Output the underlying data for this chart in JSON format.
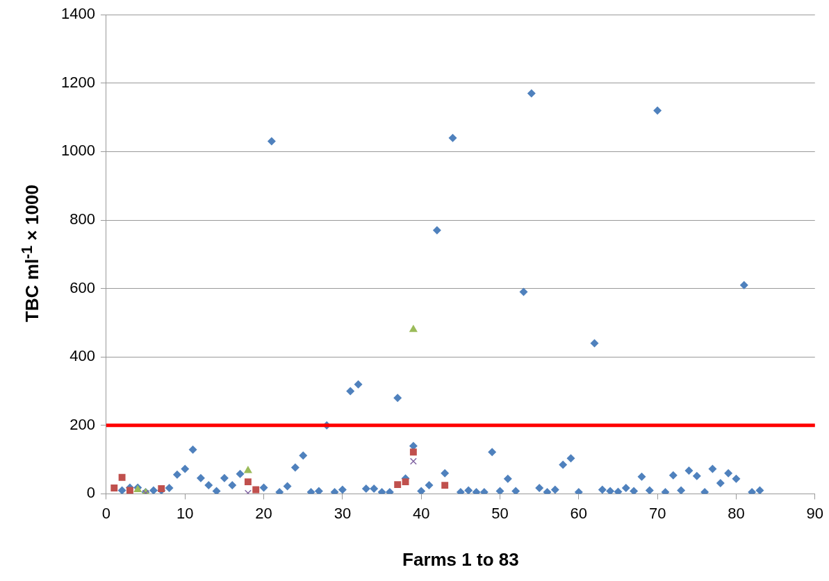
{
  "chart_data": {
    "type": "scatter",
    "xlabel": "Farms 1 to 83",
    "ylabel": "TBC ml$^{-1}$ × 1000",
    "xlim": [
      0,
      90
    ],
    "xticks": [
      0,
      10,
      20,
      30,
      40,
      50,
      60,
      70,
      80,
      90
    ],
    "ylim": [
      0,
      1400
    ],
    "yticks": [
      0,
      200,
      400,
      600,
      800,
      1000,
      1200,
      1400
    ],
    "grid": "y",
    "legend": false,
    "series": [
      {
        "color": "#4f81bd",
        "marker": "diamond",
        "x": [
          2,
          3,
          4,
          5,
          6,
          7,
          8,
          9,
          10,
          11,
          12,
          13,
          14,
          15,
          16,
          17,
          20,
          21,
          22,
          23,
          24,
          25,
          26,
          27,
          28,
          29,
          30,
          31,
          32,
          33,
          34,
          35,
          36,
          37,
          38,
          39,
          40,
          41,
          42,
          43,
          44,
          45,
          46,
          47,
          48,
          49,
          50,
          51,
          52,
          53,
          54,
          55,
          56,
          57,
          58,
          59,
          60,
          62,
          63,
          64,
          65,
          66,
          67,
          68,
          69,
          70,
          71,
          72,
          73,
          74,
          75,
          76,
          77,
          78,
          79,
          80,
          81,
          82,
          83
        ],
        "values": [
          10,
          18,
          18,
          5,
          10,
          10,
          17,
          56,
          73,
          129,
          46,
          25,
          8,
          46,
          25,
          58,
          18,
          1030,
          5,
          22,
          77,
          112,
          5,
          8,
          200,
          5,
          12,
          300,
          320,
          15,
          15,
          5,
          5,
          280,
          45,
          140,
          8,
          25,
          770,
          60,
          1040,
          5,
          10,
          5,
          5,
          122,
          8,
          44,
          8,
          590,
          1170,
          17,
          5,
          12,
          85,
          104,
          5,
          440,
          12,
          8,
          6,
          17,
          8,
          50,
          10,
          1120,
          5,
          54,
          10,
          68,
          52,
          5,
          73,
          31,
          60,
          44,
          610,
          5,
          10
        ]
      },
      {
        "color": "#c0504d",
        "marker": "square",
        "x": [
          1,
          2,
          3,
          4,
          5,
          7,
          18,
          19,
          37,
          38,
          39,
          43
        ],
        "values": [
          17,
          48,
          10,
          null,
          null,
          15,
          35,
          12,
          27,
          35,
          122,
          25
        ]
      },
      {
        "color": "#9bbb59",
        "marker": "triangle",
        "x": [
          4,
          5,
          18,
          39
        ],
        "values": [
          12,
          3,
          68,
          480
        ]
      },
      {
        "color": "#8064a2",
        "marker": "cross",
        "x": [
          5,
          18,
          39
        ],
        "values": [
          2,
          2,
          95
        ]
      }
    ],
    "ref_lines": [
      {
        "axis": "y",
        "value": 200,
        "color": "#ff0000",
        "line_style": "solid"
      }
    ]
  }
}
